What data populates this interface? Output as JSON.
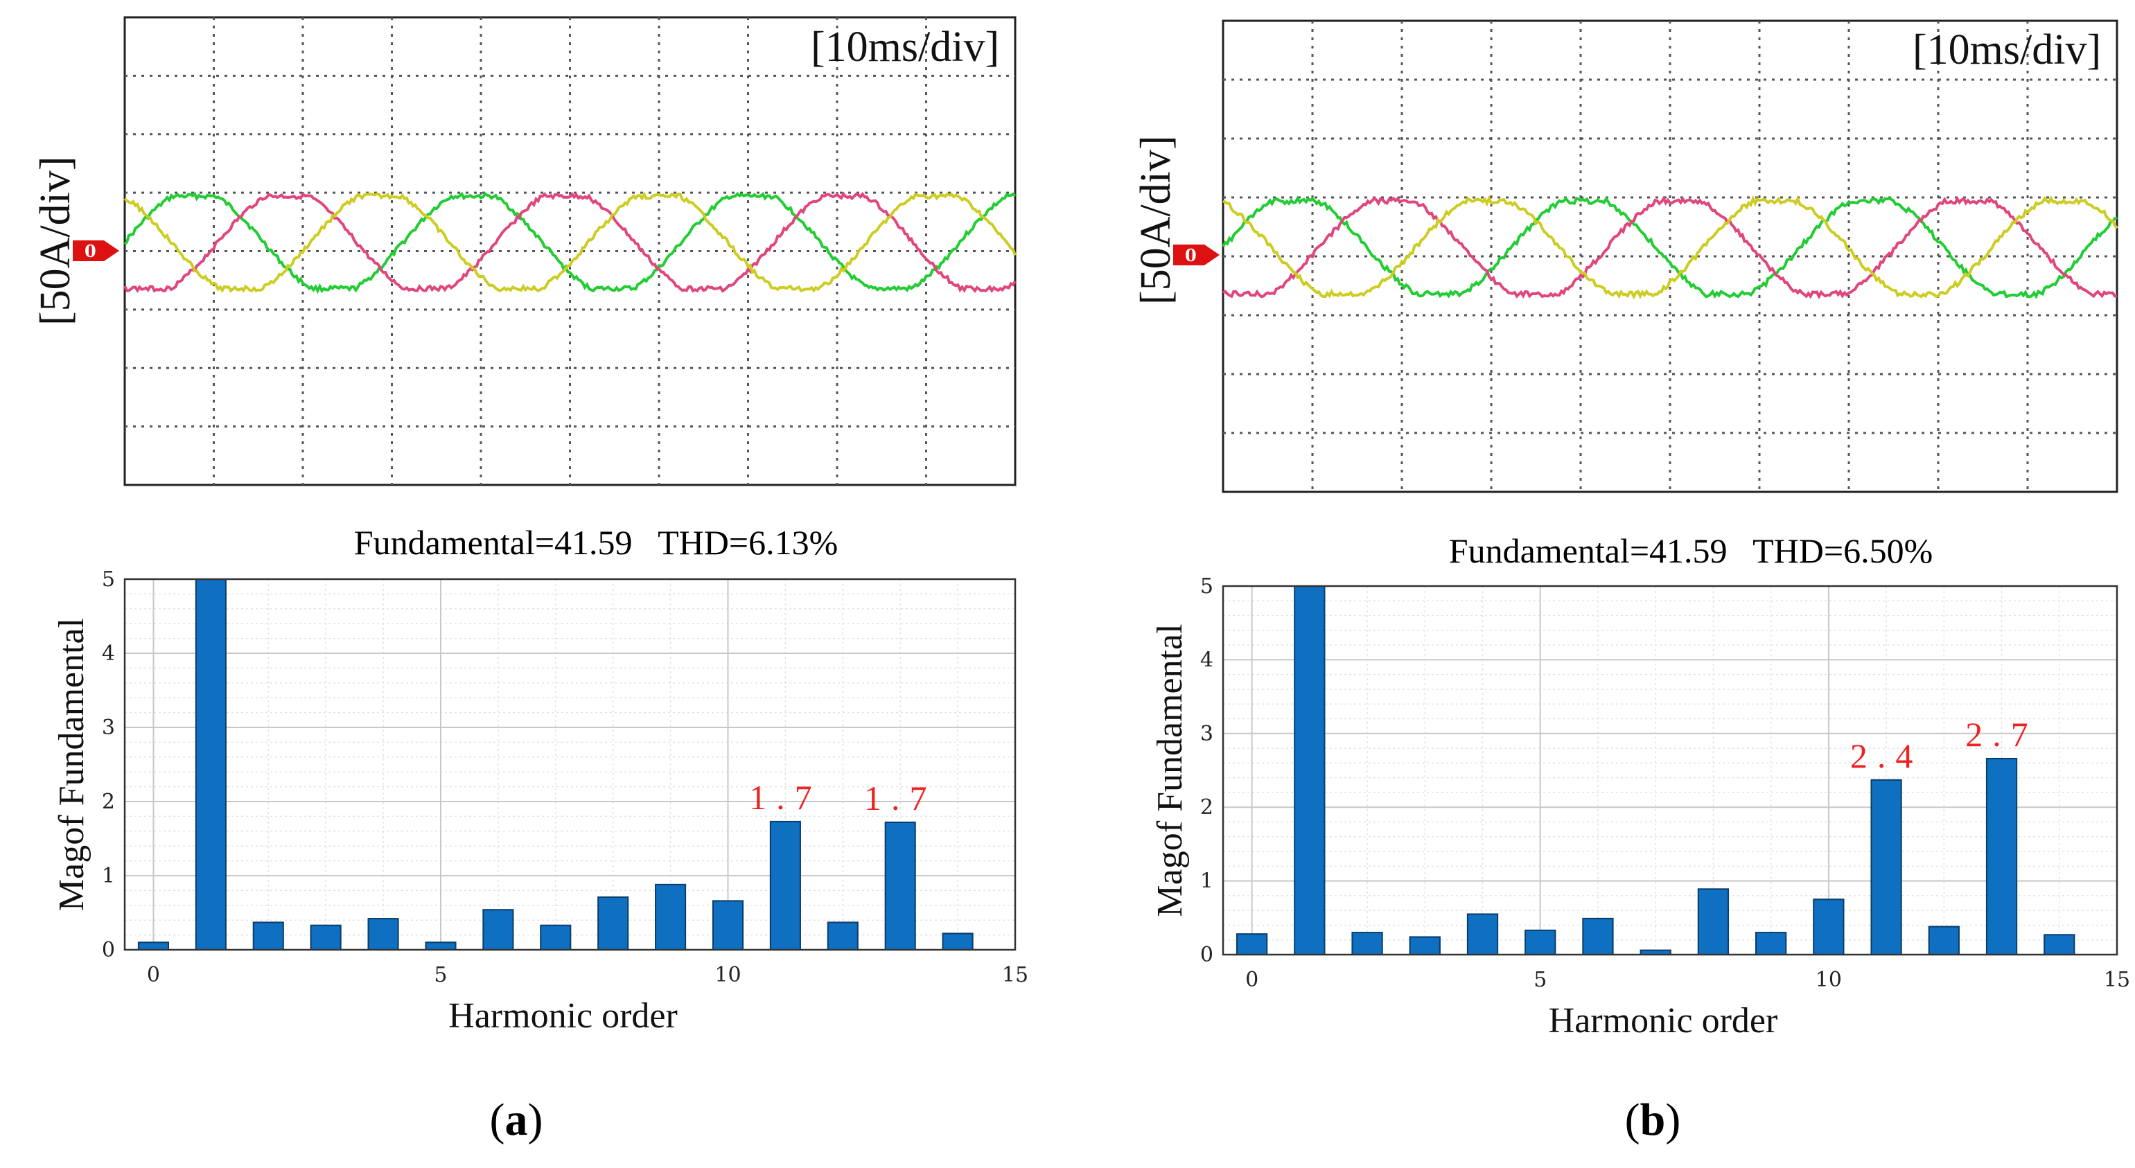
{
  "colors": {
    "phase_a": "#22cc33",
    "phase_b": "#e0457e",
    "phase_c": "#cccc22",
    "bar": "#0f6fc1",
    "annotation": "#ee2222",
    "marker": "#dd1111"
  },
  "panels": [
    {
      "label_paren_open": "(",
      "label": "a",
      "label_paren_close": ")",
      "scope": {
        "time_div": "[10ms/div]",
        "amp_div": "[50A/div]",
        "zero_marker": "0",
        "divisions": {
          "x": 10,
          "y": 8
        },
        "waveform": {
          "amplitude_div": 0.85,
          "cycles": 3.2,
          "start_phase_deg": 0,
          "noise_div": 0.04
        }
      },
      "chart_data": {
        "type": "bar",
        "title": "Fundamental=41.59   THD=6.13%",
        "xlabel": "Harmonic order",
        "ylabel": "Magof Fundamental",
        "xlim": [
          -0.5,
          15
        ],
        "ylim": [
          0,
          5
        ],
        "xticks": [
          0,
          5,
          10,
          15
        ],
        "yticks": [
          0,
          1,
          2,
          3,
          4,
          5
        ],
        "grid": true,
        "categories": [
          0,
          1,
          2,
          3,
          4,
          5,
          6,
          7,
          8,
          9,
          10,
          11,
          12,
          13,
          14
        ],
        "values": [
          0.1,
          5.0,
          0.37,
          0.33,
          0.42,
          0.1,
          0.54,
          0.33,
          0.71,
          0.88,
          0.66,
          1.73,
          0.37,
          1.72,
          0.22
        ],
        "annotations": [
          {
            "x": 11,
            "y": 1.73,
            "text": "1.7"
          },
          {
            "x": 13,
            "y": 1.72,
            "text": "1.7"
          }
        ]
      }
    },
    {
      "label_paren_open": "(",
      "label": "b",
      "label_paren_close": ")",
      "scope": {
        "time_div": "[10ms/div]",
        "amp_div": "[50A/div]",
        "zero_marker": "0",
        "divisions": {
          "x": 10,
          "y": 8
        },
        "waveform": {
          "amplitude_div": 0.85,
          "cycles": 3.1,
          "start_phase_deg": 0,
          "noise_div": 0.045
        }
      },
      "chart_data": {
        "type": "bar",
        "title": "Fundamental=41.59   THD=6.50%",
        "xlabel": "Harmonic order",
        "ylabel": "Magof Fundamental",
        "xlim": [
          -0.5,
          15
        ],
        "ylim": [
          0,
          5
        ],
        "xticks": [
          0,
          5,
          10,
          15
        ],
        "yticks": [
          0,
          1,
          2,
          3,
          4,
          5
        ],
        "grid": true,
        "categories": [
          0,
          1,
          2,
          3,
          4,
          5,
          6,
          7,
          8,
          9,
          10,
          11,
          12,
          13,
          14
        ],
        "values": [
          0.28,
          5.0,
          0.3,
          0.24,
          0.55,
          0.33,
          0.49,
          0.06,
          0.89,
          0.3,
          0.75,
          2.37,
          0.38,
          2.66,
          0.27
        ],
        "annotations": [
          {
            "x": 11,
            "y": 2.37,
            "text": "2.4"
          },
          {
            "x": 13,
            "y": 2.66,
            "text": "2.7"
          }
        ]
      }
    }
  ]
}
